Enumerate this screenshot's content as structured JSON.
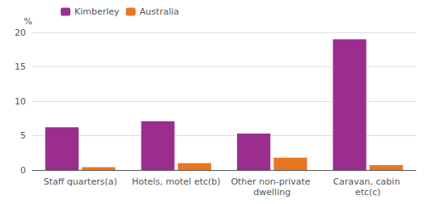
{
  "chart_data": {
    "type": "bar",
    "categories": [
      "Staff quarters(a)",
      "Hotels, motel etc(b)",
      "Other non-private dwelling",
      "Caravan, cabin etc(c)"
    ],
    "series": [
      {
        "name": "Kimberley",
        "color": "#9B2D8E",
        "values": [
          6.2,
          7.1,
          5.3,
          19.0
        ]
      },
      {
        "name": "Australia",
        "color": "#E87722",
        "values": [
          0.4,
          1.0,
          1.8,
          0.7
        ]
      }
    ],
    "ylabel": "%",
    "ylim": [
      0,
      20
    ],
    "yticks": [
      0,
      5,
      10,
      15,
      20
    ],
    "grid": true,
    "legend": "upper left"
  }
}
